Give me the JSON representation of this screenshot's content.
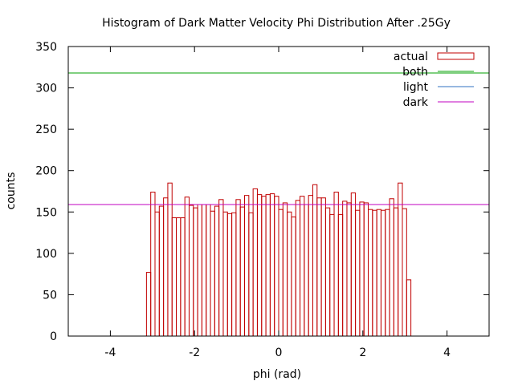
{
  "chart_data": {
    "type": "histogram",
    "title": "Histogram of Dark Matter Velocity Phi Distribution After .25Gy",
    "xlabel": "phi (rad)",
    "ylabel": "counts",
    "xlim": [
      -5,
      5
    ],
    "ylim": [
      0,
      350
    ],
    "xticks": [
      -4,
      -2,
      0,
      2,
      4
    ],
    "yticks": [
      0,
      50,
      100,
      150,
      200,
      250,
      300,
      350
    ],
    "grid": false,
    "legend_position": "top-right",
    "histogram": {
      "name": "actual",
      "color": "#c00000",
      "x_start": -3.1416,
      "x_end": 3.1416,
      "counts": [
        77,
        174,
        150,
        157,
        167,
        185,
        143,
        143,
        143,
        168,
        158,
        155,
        159,
        159,
        159,
        151,
        157,
        165,
        150,
        148,
        149,
        165,
        156,
        170,
        149,
        178,
        171,
        169,
        171,
        172,
        169,
        153,
        161,
        150,
        144,
        164,
        169,
        159,
        170,
        183,
        167,
        167,
        155,
        147,
        174,
        147,
        163,
        161,
        173,
        152,
        162,
        161,
        153,
        152,
        153,
        152,
        153,
        166,
        155,
        185,
        154,
        68
      ]
    },
    "series": [
      {
        "name": "both",
        "kind": "hline",
        "y": 318,
        "color": "#00a000"
      },
      {
        "name": "light",
        "kind": "hline",
        "y": 159,
        "color": "#3070c0"
      },
      {
        "name": "dark",
        "kind": "hline",
        "y": 159,
        "color": "#c000c0"
      }
    ]
  }
}
